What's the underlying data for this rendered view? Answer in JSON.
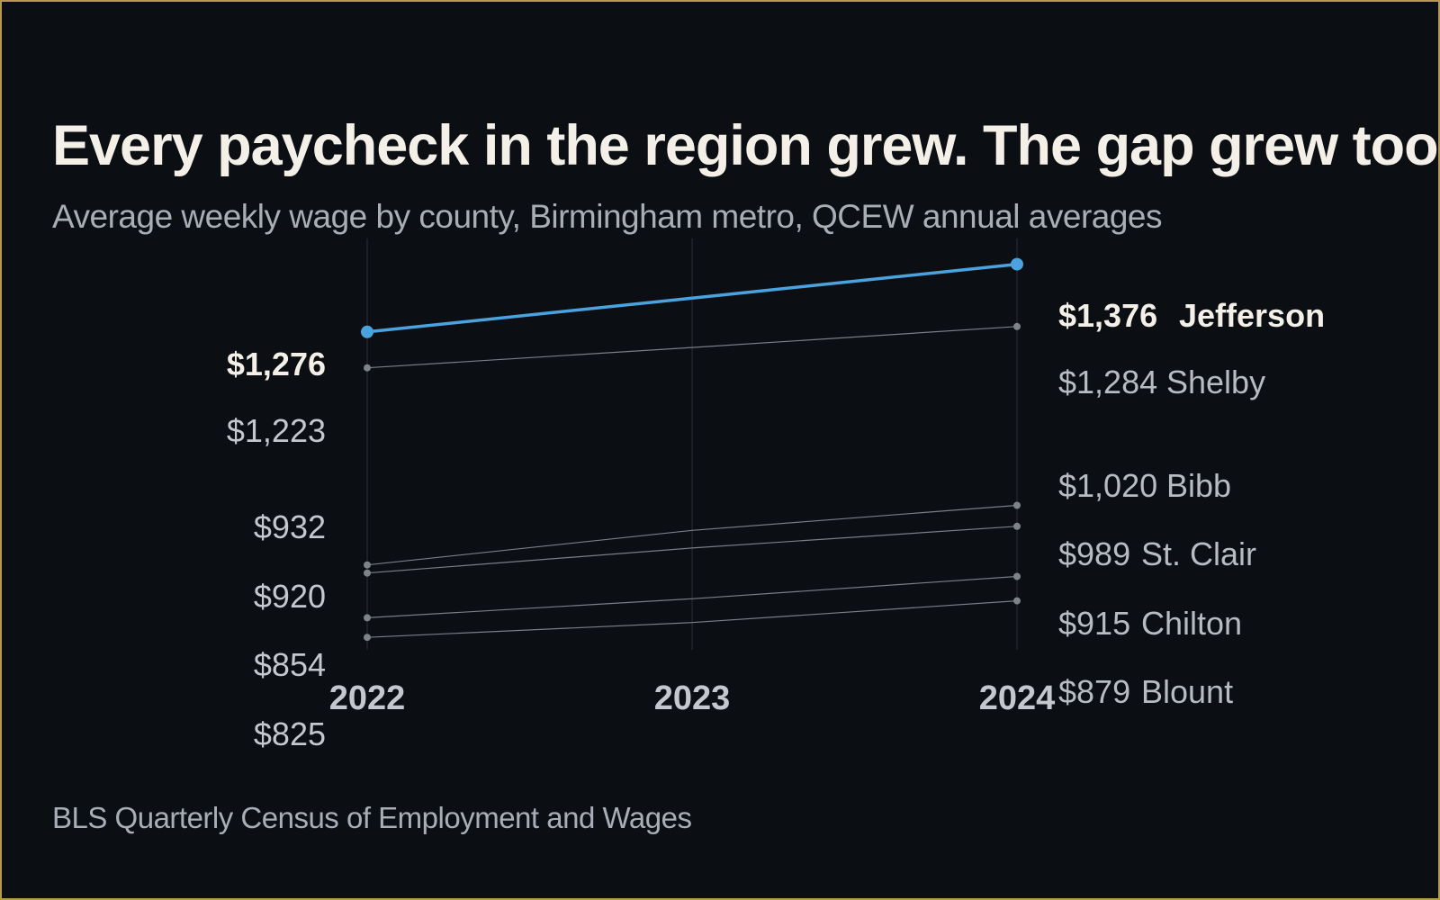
{
  "header": {
    "title": "Every paycheck in the region grew. The gap grew too.",
    "subtitle": "Average weekly wage by county, Birmingham metro, QCEW annual averages"
  },
  "footer": {
    "source": "BLS Quarterly Census of Employment and Wages"
  },
  "colors": {
    "background": "#0b0e13",
    "border": "#b59a4e",
    "highlight": "#4aa3df",
    "muted_series": "#7a7e85"
  },
  "chart_data": {
    "type": "line",
    "title": "Every paycheck in the region grew. The gap grew too.",
    "subtitle": "Average weekly wage by county, Birmingham metro, QCEW annual averages",
    "x": [
      2022,
      2023,
      2024
    ],
    "x_tick_labels": [
      "2022",
      "2023",
      "2024"
    ],
    "ylim": [
      820,
      1410
    ],
    "grid": "vertical",
    "left_labels": [
      "$1,276",
      "$1,223",
      "$932",
      "$920",
      "$854",
      "$825"
    ],
    "highlight_series": "Jefferson",
    "series": [
      {
        "name": "Jefferson",
        "values": [
          1276,
          1326,
          1376
        ],
        "end_label": "$1,376",
        "highlight": true
      },
      {
        "name": "Shelby",
        "values": [
          1223,
          1253,
          1284
        ],
        "end_label": "$1,284",
        "highlight": false
      },
      {
        "name": "Bibb",
        "values": [
          932,
          983,
          1020
        ],
        "end_label": "$1,020",
        "highlight": false
      },
      {
        "name": "St. Clair",
        "values": [
          920,
          957,
          989
        ],
        "end_label": "$989",
        "highlight": false
      },
      {
        "name": "Chilton",
        "values": [
          854,
          882,
          915
        ],
        "end_label": "$915",
        "highlight": false
      },
      {
        "name": "Blount",
        "values": [
          825,
          847,
          879
        ],
        "end_label": "$879",
        "highlight": false
      }
    ]
  }
}
